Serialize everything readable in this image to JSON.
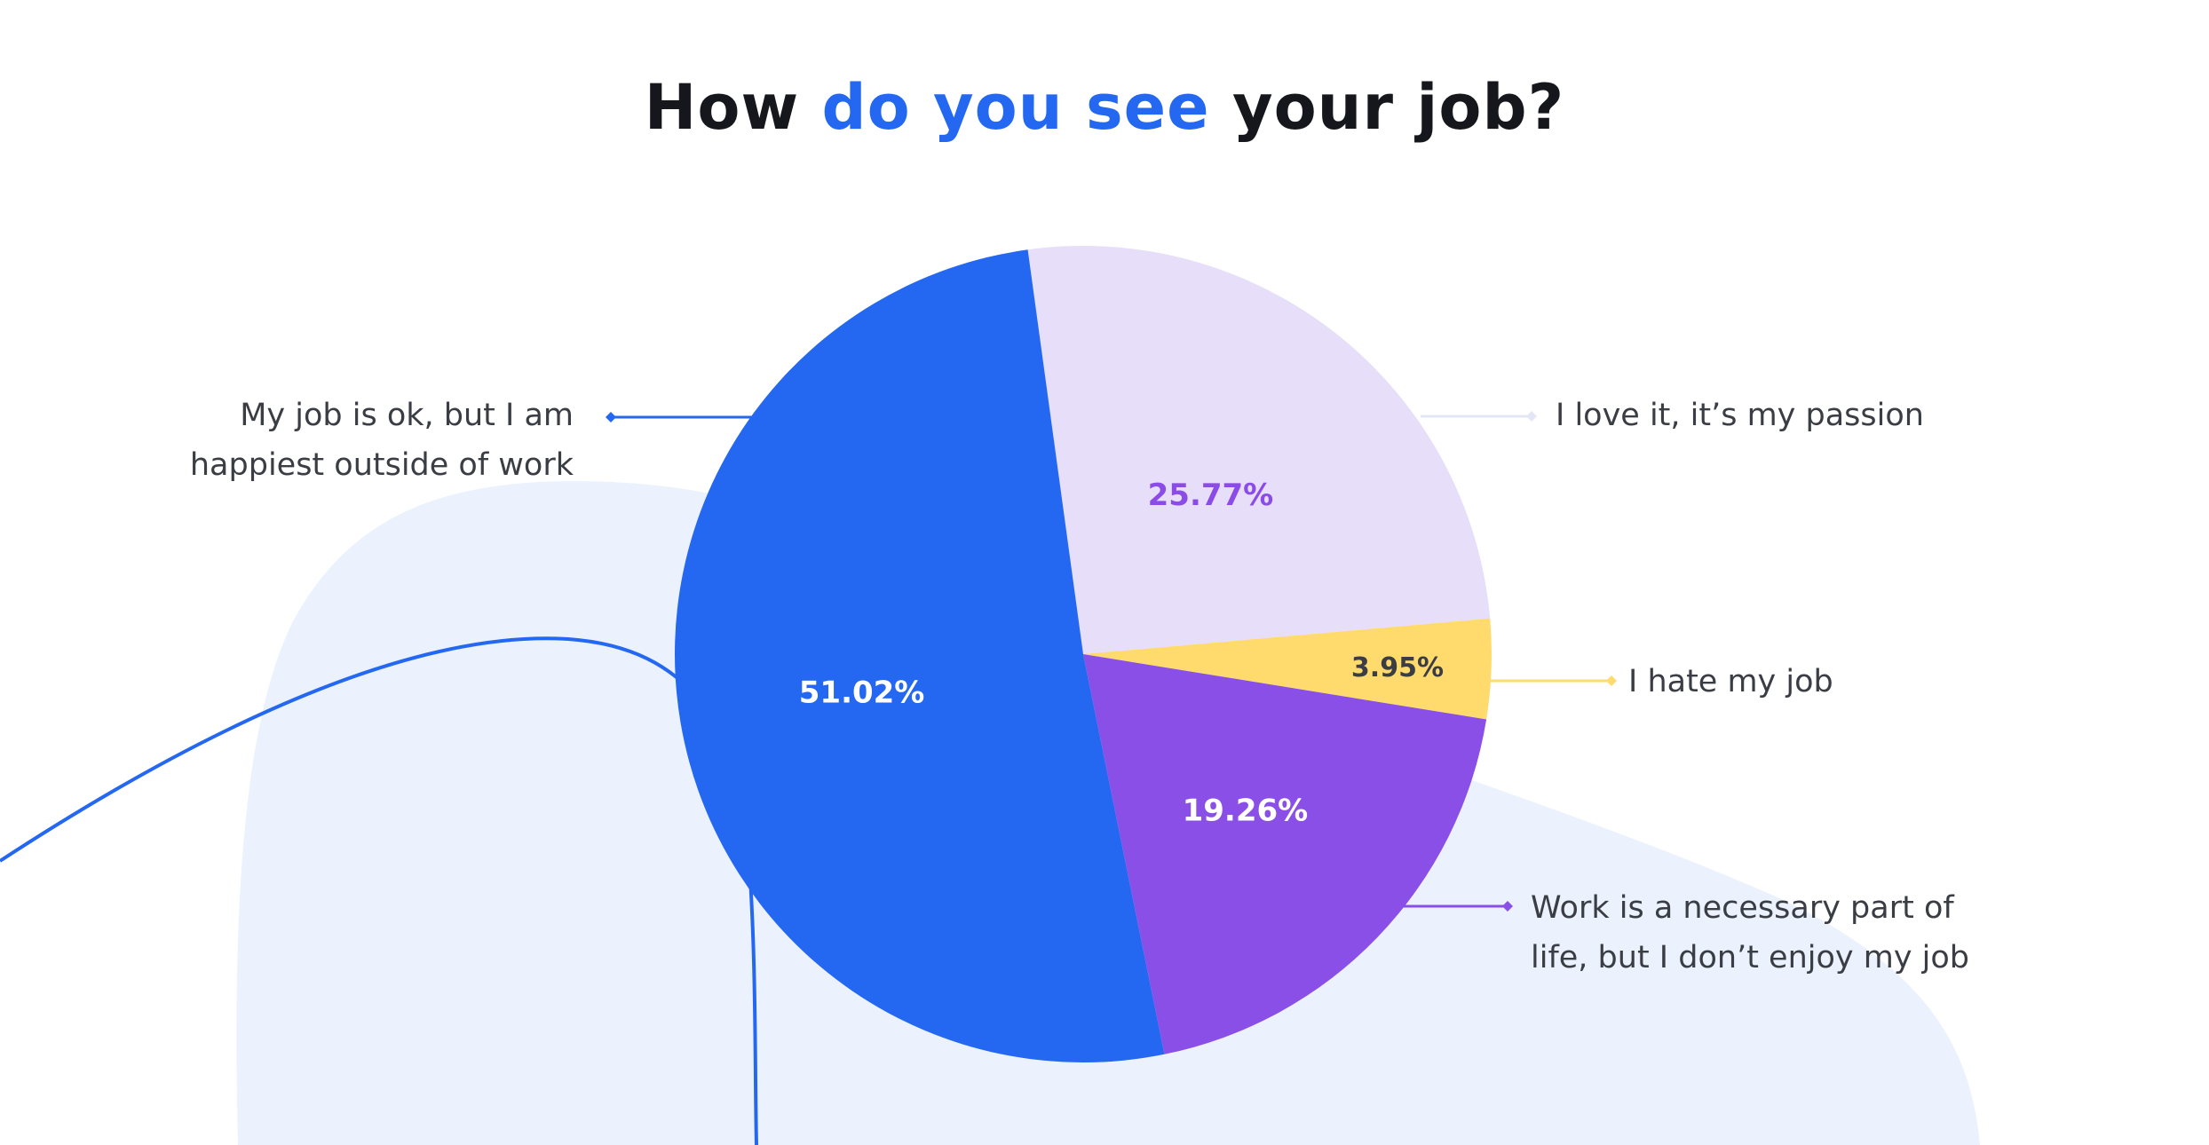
{
  "title": {
    "part1": "How ",
    "part2": "do you see",
    "part3": " your job?"
  },
  "colors": {
    "accent": "#2468f2",
    "blob": "#ebf2fd"
  },
  "chart_data": {
    "type": "pie",
    "title": "How do you see your job?",
    "slices": [
      {
        "label": "I love it, it’s my passion",
        "line1": "I love it, it’s my passion",
        "line2": "",
        "value": 25.77,
        "display": "25.77%",
        "color": "#e7defa",
        "label_color": "#8a4be6",
        "line_color": "#e3e6f5"
      },
      {
        "label": "I hate my job",
        "line1": "I hate my job",
        "line2": "",
        "value": 3.95,
        "display": "3.95%",
        "color": "#ffdb6e",
        "label_color": "#3a3d44",
        "line_color": "#ffdb6e"
      },
      {
        "label": "Work is a necessary part of life, but I don’t enjoy my job",
        "line1": "Work is a necessary part of",
        "line2": "life, but I don’t enjoy my job",
        "value": 19.26,
        "display": "19.26%",
        "color": "#8a4fe6",
        "label_color": "#ffffff",
        "line_color": "#8a4fe6"
      },
      {
        "label": "My job is ok, but I am happiest outside of work",
        "line1": "My job is ok, but I am",
        "line2": "happiest outside of work",
        "value": 51.02,
        "display": "51.02%",
        "color": "#2468f2",
        "label_color": "#ffffff",
        "line_color": "#2468f2"
      }
    ]
  }
}
